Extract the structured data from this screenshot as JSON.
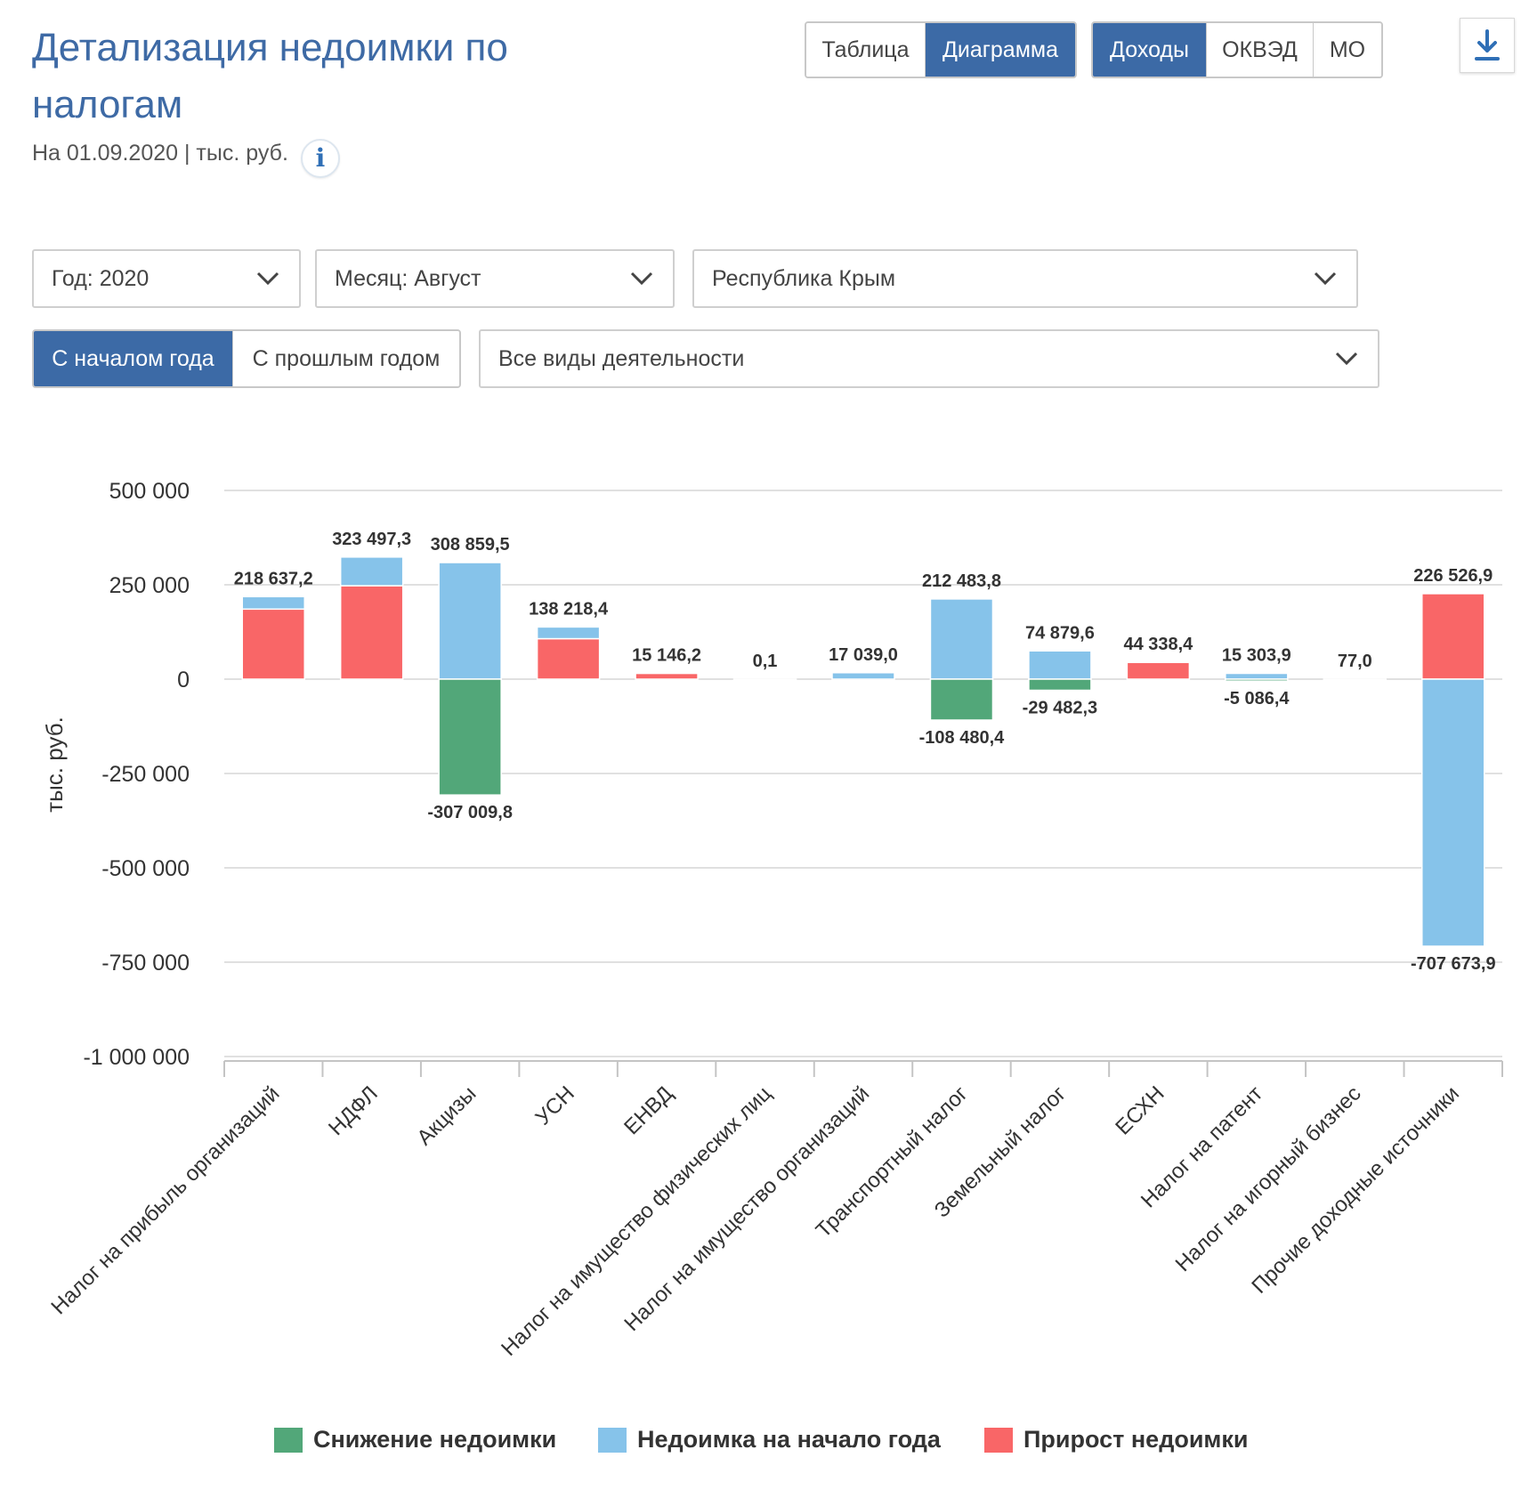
{
  "header": {
    "title": "Детализация недоимки по налогам",
    "subtitle": "На 01.09.2020 | тыс. руб.",
    "info_label": "i"
  },
  "view_toggle": {
    "table": "Таблица",
    "chart": "Диаграмма",
    "active": "chart"
  },
  "dimension_toggle": {
    "income": "Доходы",
    "okved": "ОКВЭД",
    "mo": "МО",
    "active": "income"
  },
  "filters": {
    "year": "Год: 2020",
    "month": "Месяц: Август",
    "region": "Республика Крым",
    "activity": "Все виды деятельности"
  },
  "period_toggle": {
    "from_year_start": "С началом года",
    "vs_last_year": "С прошлым годом",
    "active": "from_year_start"
  },
  "colors": {
    "decrease": "#52a779",
    "start_of_year": "#86c3ea",
    "increase": "#f96667",
    "accent": "#3c6aa6"
  },
  "chart_data": {
    "type": "bar",
    "stacked": true,
    "ylabel": "тыс. руб.",
    "ylim": [
      -1000000,
      500000
    ],
    "yticks": [
      500000,
      250000,
      0,
      -250000,
      -500000,
      -750000,
      -1000000
    ],
    "ytick_labels": [
      "500 000",
      "250 000",
      "0",
      "-250 000",
      "-500 000",
      "-750 000",
      "-1 000 000"
    ],
    "grid": true,
    "legend_position": "bottom",
    "categories": [
      "Налог на прибыль организаций",
      "НДФЛ",
      "Акцизы",
      "УСН",
      "ЕНВД",
      "Налог на имущество физических лиц",
      "Налог на имущество организаций",
      "Транспортный налог",
      "Земельный налог",
      "ЕСХН",
      "Налог на патент",
      "Налог на игорный бизнес",
      "Прочие доходные источники"
    ],
    "series": [
      {
        "name": "Снижение недоимки",
        "color_key": "decrease",
        "values": [
          0,
          0,
          -307009.8,
          0,
          0,
          0,
          0,
          -108480.4,
          -29482.3,
          0,
          -5086.4,
          0,
          0
        ]
      },
      {
        "name": "Недоимка на начало года",
        "color_key": "start_of_year",
        "values": [
          33000,
          76000,
          308859.5,
          31000,
          0,
          0,
          17039.0,
          212483.8,
          74879.6,
          0,
          15303.9,
          0,
          -707673.9
        ]
      },
      {
        "name": "Прирост недоимки",
        "color_key": "increase",
        "values": [
          185637.2,
          247497.3,
          0,
          107218.4,
          15146.2,
          0.1,
          0,
          0,
          0,
          44338.4,
          0,
          77.0,
          226526.9
        ]
      }
    ],
    "positive_labels": [
      "218 637,2",
      "323 497,3",
      "308 859,5",
      "138 218,4",
      "15 146,2",
      "0,1",
      "17 039,0",
      "212 483,8",
      "74 879,6",
      "44 338,4",
      "15 303,9",
      "77,0",
      "226 526,9"
    ],
    "negative_labels": [
      "",
      "",
      "-307 009,8",
      "",
      "",
      "",
      "",
      "-108 480,4",
      "-29 482,3",
      "",
      "-5 086,4",
      "",
      "-707 673,9"
    ]
  }
}
